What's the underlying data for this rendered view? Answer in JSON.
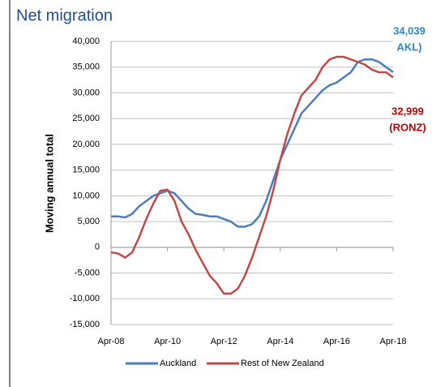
{
  "chart_data": {
    "type": "line",
    "title": "Net migration",
    "y_label": "Moving annual total",
    "annotations": [
      "34,039",
      "AKL)",
      "32,999",
      "(RONZ)"
    ],
    "categories": [
      "Apr-08",
      null,
      null,
      null,
      null,
      null,
      null,
      null,
      "Apr-10",
      null,
      null,
      null,
      null,
      null,
      null,
      null,
      "Apr-12",
      null,
      null,
      null,
      null,
      null,
      null,
      null,
      "Apr-14",
      null,
      null,
      null,
      null,
      null,
      null,
      null,
      "Apr-16",
      null,
      null,
      null,
      null,
      null,
      null,
      null,
      "Apr-18"
    ],
    "series": [
      {
        "name": "Auckland",
        "color": "#4a7ebb",
        "values": [
          6000,
          6000,
          5800,
          6500,
          8000,
          9000,
          10000,
          10500,
          11000,
          10500,
          9000,
          7500,
          6500,
          6300,
          6000,
          6000,
          5500,
          5000,
          4000,
          4000,
          4500,
          6000,
          9000,
          13000,
          17000,
          20000,
          23000,
          26000,
          27500,
          29000,
          30500,
          31500,
          32000,
          33000,
          34000,
          36000,
          36500,
          36500,
          36000,
          35000,
          34039
        ]
      },
      {
        "name": "Rest of New Zealand",
        "color": "#be4b48",
        "values": [
          -1000,
          -1200,
          -2000,
          -1000,
          2000,
          5500,
          8500,
          11000,
          11200,
          9000,
          5000,
          2500,
          -500,
          -3000,
          -5500,
          -7000,
          -9000,
          -9000,
          -8000,
          -5500,
          -2000,
          2000,
          6000,
          11000,
          17000,
          22000,
          26000,
          29500,
          31000,
          32500,
          35000,
          36500,
          37000,
          37000,
          36500,
          36000,
          35500,
          34500,
          34000,
          34000,
          32999
        ]
      }
    ],
    "ylim": [
      -15000,
      40000
    ],
    "yticks": [
      {
        "value": -15000,
        "label": "-15,000"
      },
      {
        "value": -10000,
        "label": "-10,000"
      },
      {
        "value": -5000,
        "label": "-5,000"
      },
      0,
      {
        "value": 5000,
        "label": "5,000"
      },
      {
        "value": 10000,
        "label": "10,000"
      },
      {
        "value": 15000,
        "label": "15,000"
      },
      {
        "value": 20000,
        "label": "20,000"
      },
      {
        "value": 25000,
        "label": "25,000"
      },
      {
        "value": 30000,
        "label": "30,000"
      },
      {
        "value": 35000,
        "label": "35,000"
      },
      {
        "value": 40000,
        "label": "40,000"
      }
    ],
    "grid": true,
    "legend": "bottom"
  }
}
